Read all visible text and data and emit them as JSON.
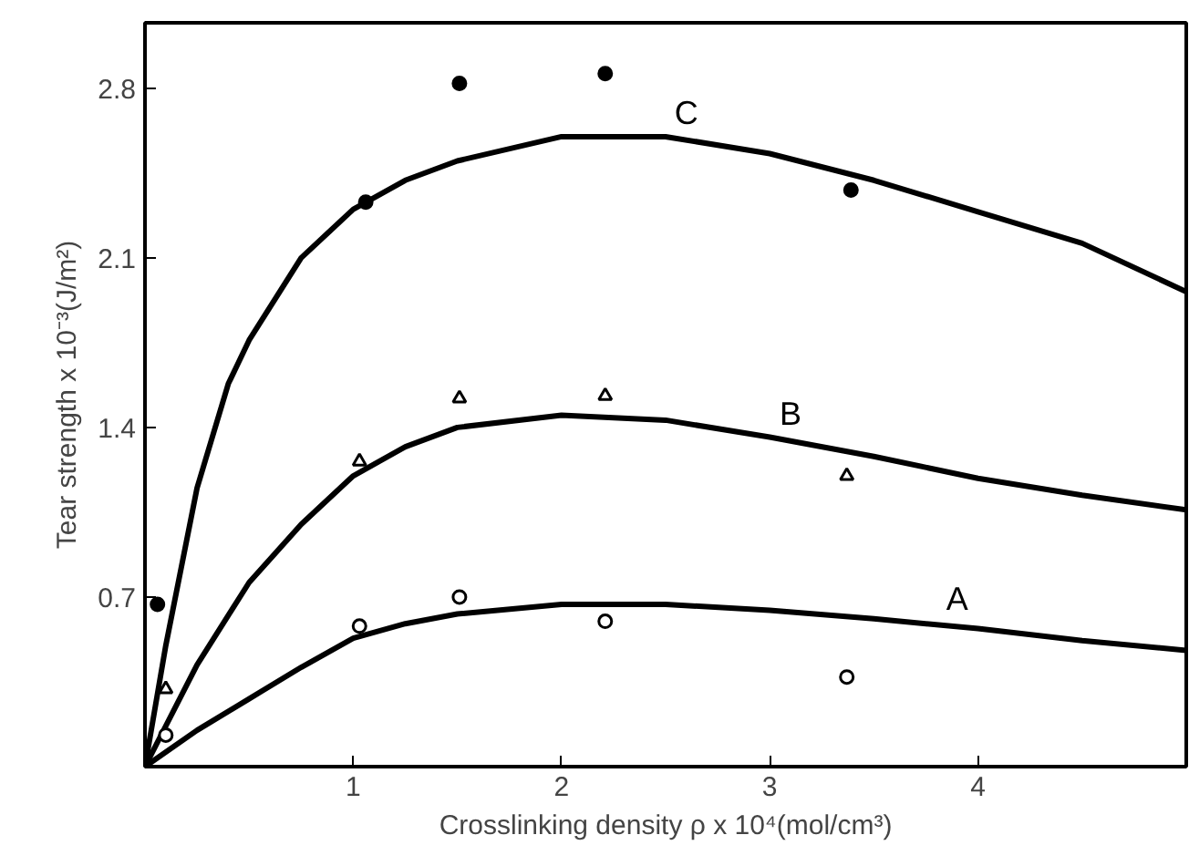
{
  "chart_data": {
    "type": "line",
    "xlabel": "Crosslinking density ρ x 10⁴(mol/cm³)",
    "ylabel": "Tear strength x 10⁻³(J/m²)",
    "xlim": [
      0,
      5
    ],
    "ylim": [
      0,
      3.07
    ],
    "xticks": [
      1,
      2,
      3,
      4
    ],
    "yticks": [
      0.7,
      1.4,
      2.1,
      2.8
    ],
    "grid": false,
    "legend": false,
    "series": [
      {
        "name": "C",
        "color": "#000000",
        "marker": "none",
        "line_style": "solid",
        "x": [
          0,
          0.1,
          0.25,
          0.4,
          0.5,
          0.75,
          1.0,
          1.25,
          1.5,
          2.0,
          2.5,
          3.0,
          3.5,
          4.0,
          4.5,
          5.0
        ],
        "values": [
          0,
          0.5,
          1.15,
          1.58,
          1.76,
          2.1,
          2.3,
          2.42,
          2.5,
          2.6,
          2.6,
          2.53,
          2.42,
          2.29,
          2.16,
          1.96
        ]
      },
      {
        "name": "B",
        "color": "#000000",
        "marker": "none",
        "line_style": "solid",
        "x": [
          0,
          0.25,
          0.5,
          0.75,
          1.0,
          1.25,
          1.5,
          2.0,
          2.5,
          3.0,
          3.5,
          4.0,
          4.5,
          5.0
        ],
        "values": [
          0,
          0.42,
          0.76,
          1.0,
          1.2,
          1.32,
          1.4,
          1.45,
          1.43,
          1.36,
          1.28,
          1.19,
          1.12,
          1.06
        ]
      },
      {
        "name": "A",
        "color": "#000000",
        "marker": "none",
        "line_style": "solid",
        "x": [
          0,
          0.25,
          0.5,
          0.75,
          1.0,
          1.25,
          1.5,
          2.0,
          2.5,
          3.0,
          3.5,
          4.0,
          4.5,
          5.0
        ],
        "values": [
          0,
          0.15,
          0.28,
          0.41,
          0.53,
          0.59,
          0.63,
          0.67,
          0.67,
          0.645,
          0.61,
          0.57,
          0.52,
          0.48
        ]
      },
      {
        "type": "scatter",
        "color": "#000000",
        "marker": "circle",
        "x": [
          0.06,
          1.06,
          1.51,
          2.21,
          3.39
        ],
        "values": [
          0.67,
          2.33,
          2.82,
          2.86,
          2.38
        ]
      },
      {
        "type": "scatter",
        "color": "#000000",
        "marker": "triangle",
        "x": [
          0.1,
          1.03,
          1.51,
          2.21,
          3.37
        ],
        "values": [
          0.32,
          1.26,
          1.52,
          1.53,
          1.2
        ]
      },
      {
        "type": "scatter",
        "color": "#000000",
        "marker": "circle",
        "x": [
          0.1,
          1.03,
          1.51,
          2.21,
          3.37
        ],
        "values": [
          0.13,
          0.58,
          0.7,
          0.6,
          0.37
        ]
      }
    ]
  }
}
